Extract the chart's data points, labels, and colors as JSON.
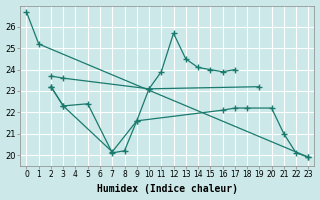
{
  "xlabel": "Humidex (Indice chaleur)",
  "bg_color": "#cce8e8",
  "grid_color": "#ffffff",
  "line_color": "#1a7a6e",
  "xlim": [
    -0.5,
    23.5
  ],
  "ylim": [
    19.5,
    27.0
  ],
  "yticks": [
    20,
    21,
    22,
    23,
    24,
    25,
    26
  ],
  "xticks": [
    0,
    1,
    2,
    3,
    4,
    5,
    6,
    7,
    8,
    9,
    10,
    11,
    12,
    13,
    14,
    15,
    16,
    17,
    18,
    19,
    20,
    21,
    22,
    23
  ],
  "series": [
    {
      "x": [
        0,
        1,
        23
      ],
      "y": [
        26.7,
        25.2,
        19.9
      ]
    },
    {
      "x": [
        2,
        3,
        10,
        19
      ],
      "y": [
        23.7,
        23.6,
        23.1,
        23.2
      ]
    },
    {
      "x": [
        2,
        3,
        7,
        9,
        10,
        11,
        12,
        13,
        14,
        15,
        16,
        17
      ],
      "y": [
        23.2,
        22.3,
        20.15,
        21.6,
        23.1,
        23.9,
        25.7,
        24.5,
        24.1,
        24.0,
        23.9,
        24.0
      ]
    },
    {
      "x": [
        2,
        3,
        5,
        7,
        8,
        9,
        16,
        17,
        18,
        20,
        21,
        22,
        23
      ],
      "y": [
        23.2,
        22.3,
        22.4,
        20.1,
        20.2,
        21.6,
        22.1,
        22.2,
        22.2,
        22.2,
        21.0,
        20.1,
        19.9
      ]
    }
  ]
}
